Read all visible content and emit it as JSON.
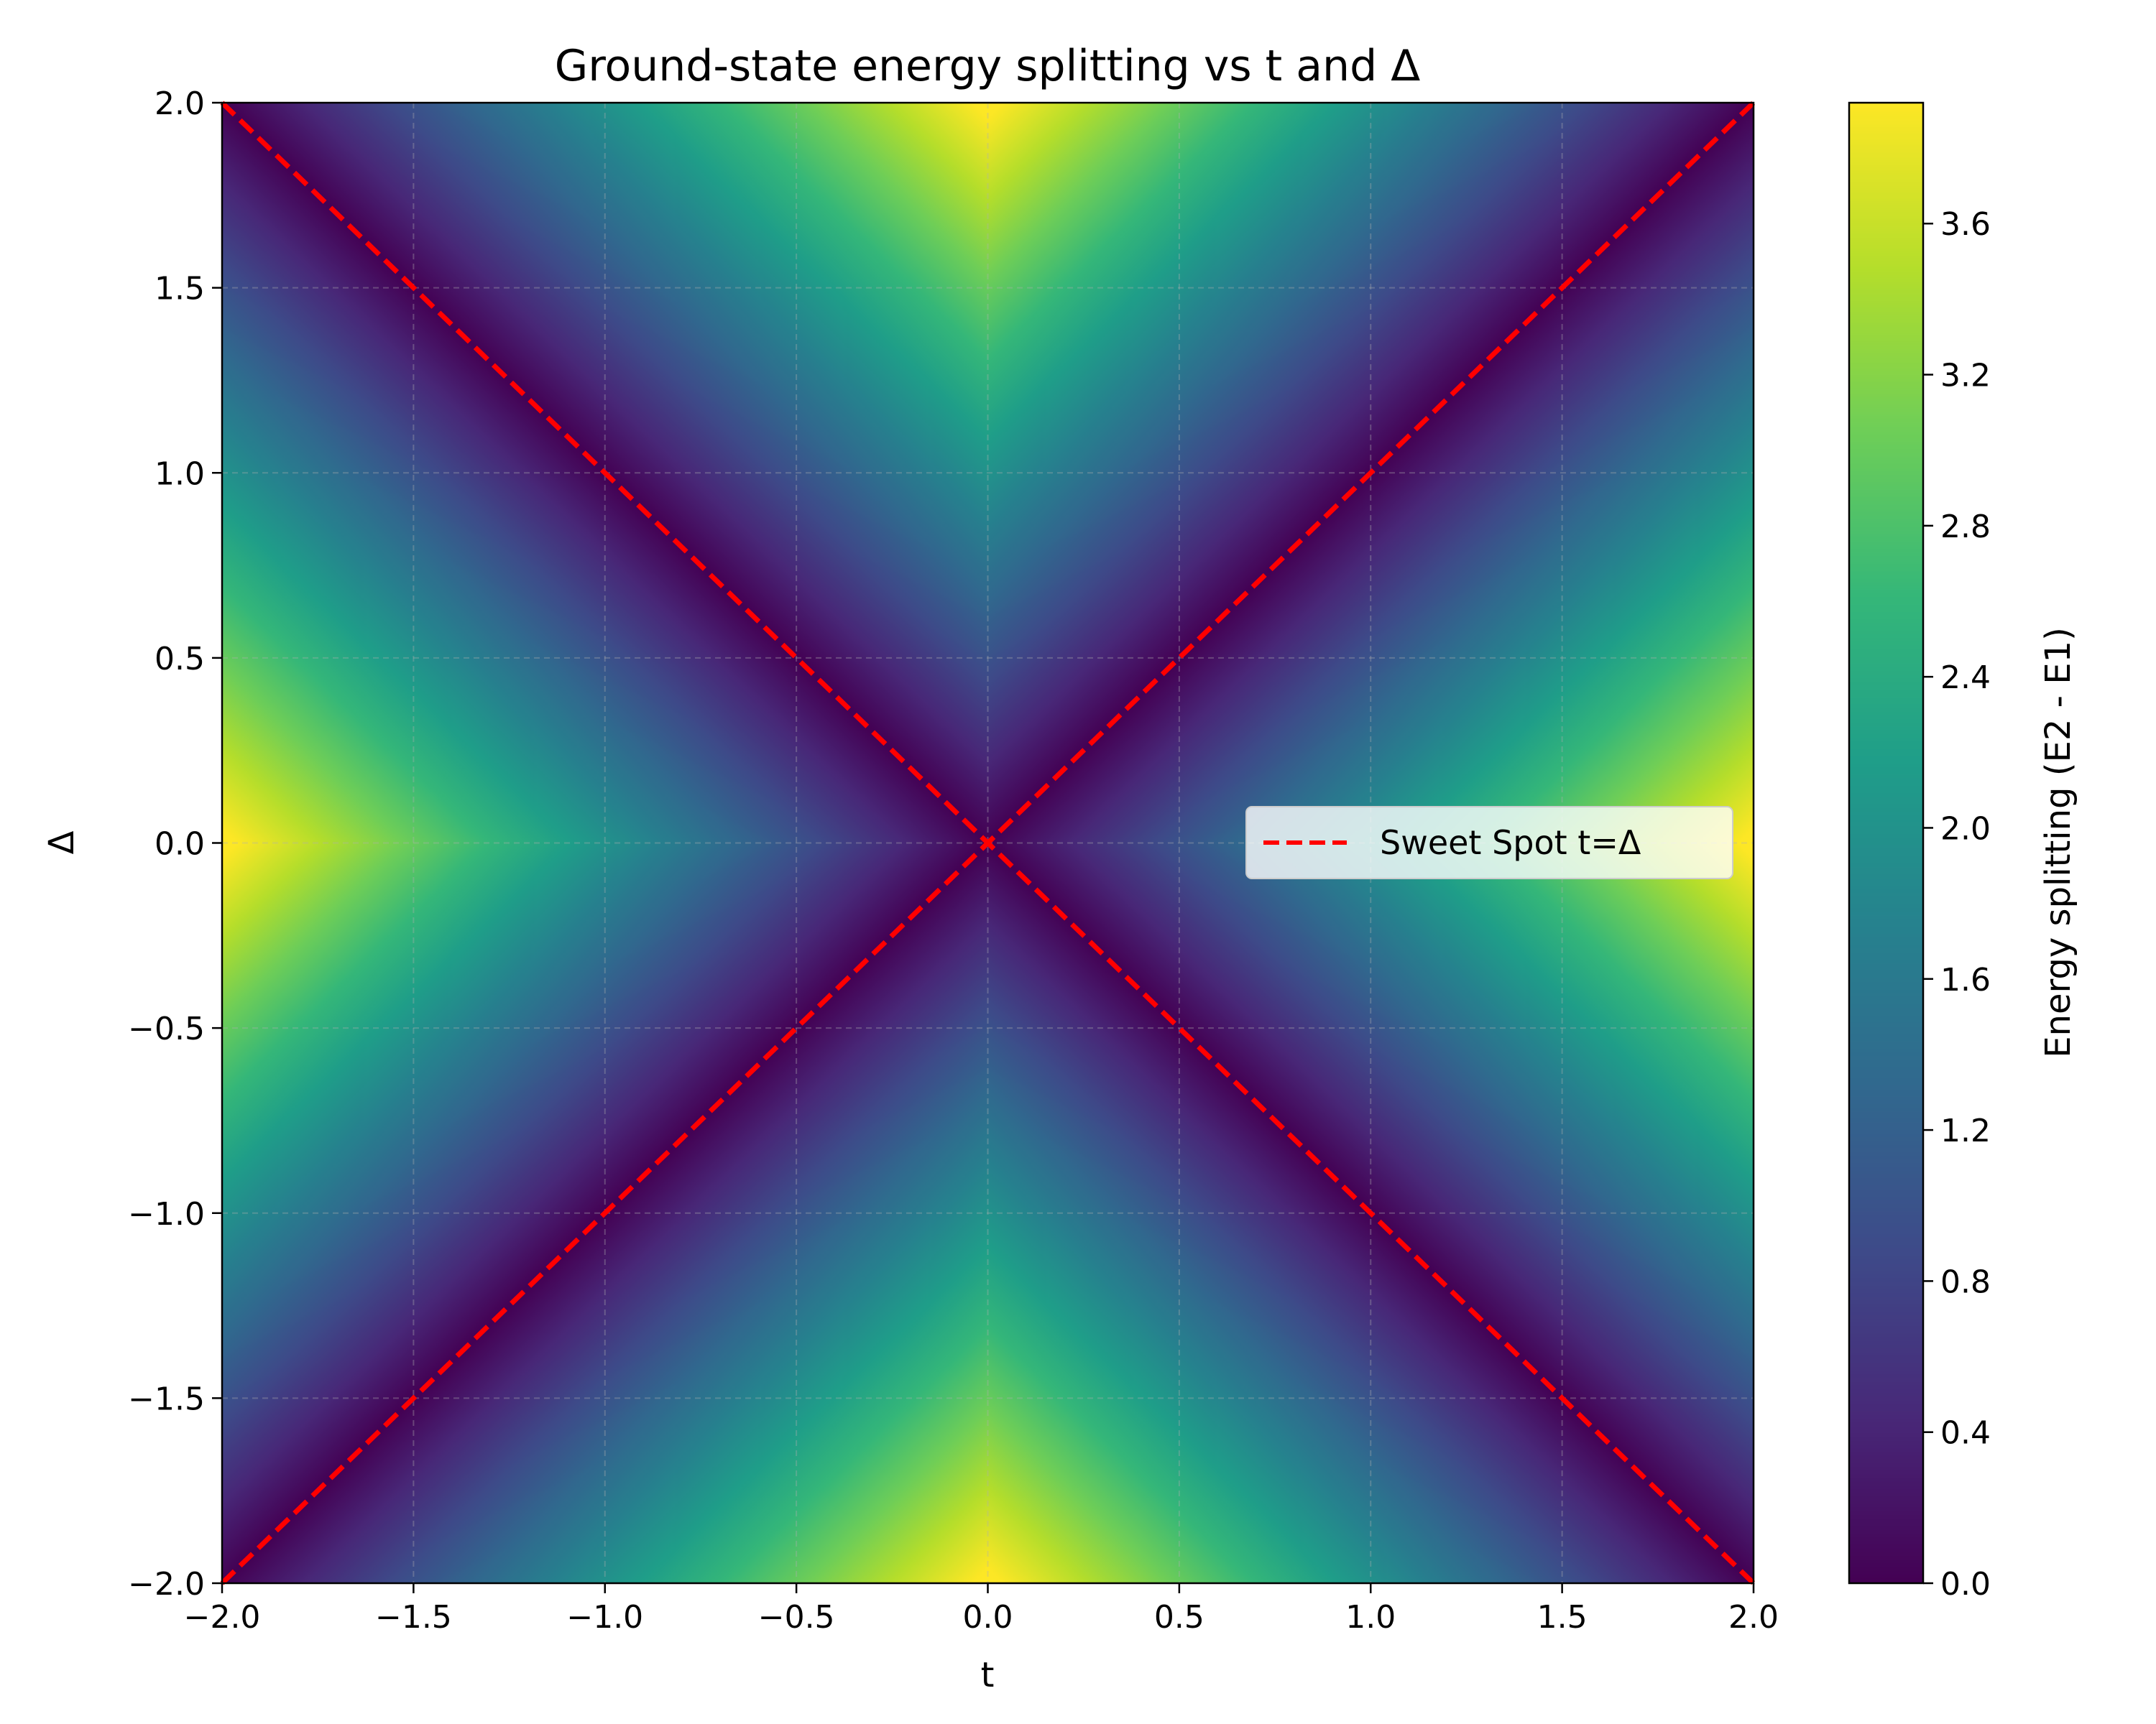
{
  "chart_data": {
    "type": "heatmap",
    "title": "Ground-state energy splitting vs t and Δ",
    "xlabel": "t",
    "ylabel": "Δ",
    "xlim": [
      -2.0,
      2.0
    ],
    "ylim": [
      -2.0,
      2.0
    ],
    "x_ticks": [
      -2.0,
      -1.5,
      -1.0,
      -0.5,
      0.0,
      0.5,
      1.0,
      1.5,
      2.0
    ],
    "y_ticks": [
      -2.0,
      -1.5,
      -1.0,
      -0.5,
      0.0,
      0.5,
      1.0,
      1.5,
      2.0
    ],
    "x_tick_labels": [
      "−2.0",
      "−1.5",
      "−1.0",
      "−0.5",
      "0.0",
      "0.5",
      "1.0",
      "1.5",
      "2.0"
    ],
    "y_tick_labels": [
      "−2.0",
      "−1.5",
      "−1.0",
      "−0.5",
      "0.0",
      "0.5",
      "1.0",
      "1.5",
      "2.0"
    ],
    "z_function": "2*||t|-|Δ||",
    "colormap": "viridis",
    "grid": true,
    "colorbar": {
      "label": "Energy splitting (E2 - E1)",
      "range": [
        0.0,
        3.92
      ],
      "ticks": [
        0.0,
        0.4,
        0.8,
        1.2,
        1.6,
        2.0,
        2.4,
        2.8,
        3.2,
        3.6
      ],
      "tick_labels": [
        "0.0",
        "0.4",
        "0.8",
        "1.2",
        "1.6",
        "2.0",
        "2.4",
        "2.8",
        "3.2",
        "3.6"
      ]
    },
    "overlay_lines": [
      {
        "name": "Sweet Spot t=Δ",
        "x": [
          -2.0,
          2.0
        ],
        "y": [
          -2.0,
          2.0
        ],
        "color": "#ff0000",
        "style": "dashed"
      },
      {
        "x": [
          -2.0,
          2.0
        ],
        "y": [
          2.0,
          -2.0
        ],
        "color": "#ff0000",
        "style": "dashed"
      }
    ],
    "legend": {
      "entries": [
        "Sweet Spot t=Δ"
      ],
      "placement": "center-right"
    }
  }
}
